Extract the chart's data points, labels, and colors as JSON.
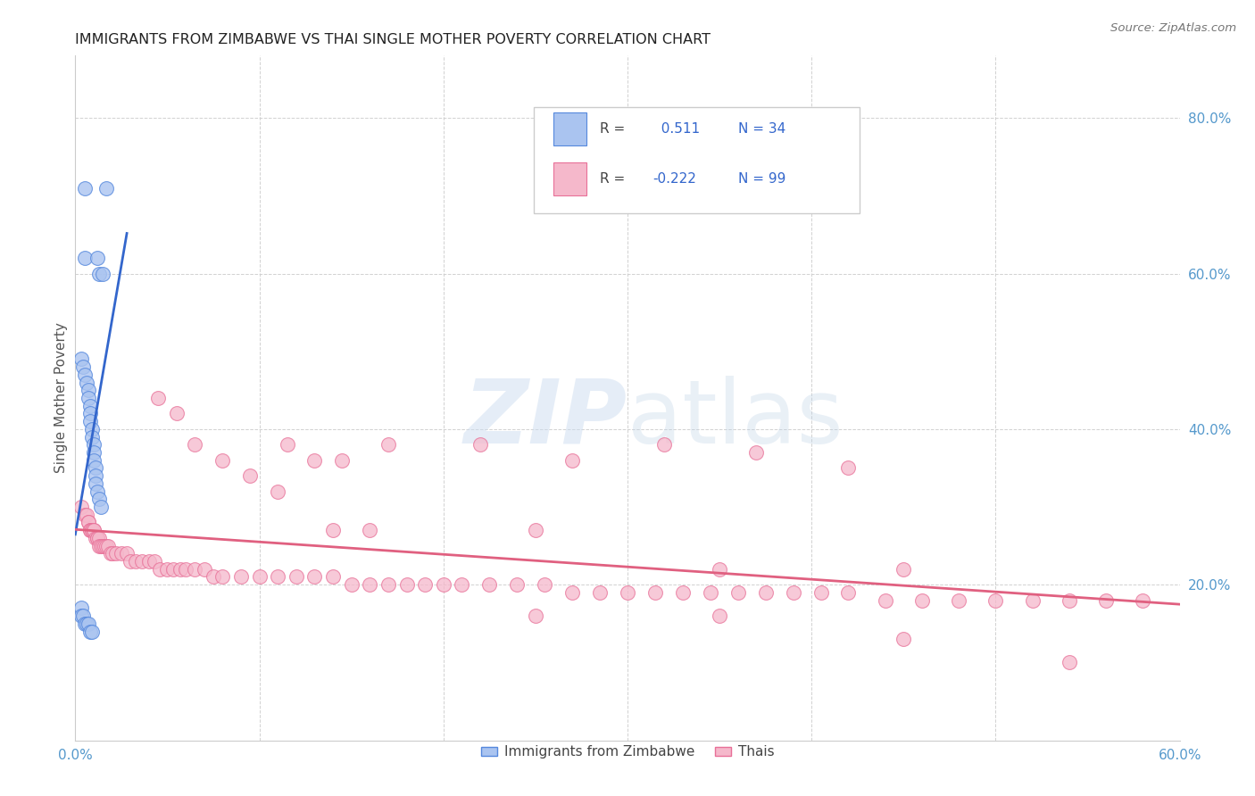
{
  "title": "IMMIGRANTS FROM ZIMBABWE VS THAI SINGLE MOTHER POVERTY CORRELATION CHART",
  "source": "Source: ZipAtlas.com",
  "ylabel": "Single Mother Poverty",
  "xmin": 0.0,
  "xmax": 0.6,
  "ymin": 0.0,
  "ymax": 0.88,
  "R1": 0.511,
  "N1": 34,
  "R2": -0.222,
  "N2": 99,
  "color_blue": "#aac4f0",
  "color_blue_edge": "#5588dd",
  "color_blue_line": "#3366cc",
  "color_pink": "#f5b8cb",
  "color_pink_edge": "#e87098",
  "color_pink_line": "#e06080",
  "background": "#ffffff",
  "blue_x": [
    0.005,
    0.017,
    0.005,
    0.012,
    0.013,
    0.015,
    0.003,
    0.004,
    0.005,
    0.006,
    0.007,
    0.007,
    0.008,
    0.008,
    0.008,
    0.009,
    0.009,
    0.01,
    0.01,
    0.01,
    0.011,
    0.011,
    0.011,
    0.012,
    0.013,
    0.014,
    0.003,
    0.003,
    0.004,
    0.005,
    0.006,
    0.007,
    0.008,
    0.009
  ],
  "blue_y": [
    0.71,
    0.71,
    0.62,
    0.62,
    0.6,
    0.6,
    0.49,
    0.48,
    0.47,
    0.46,
    0.45,
    0.44,
    0.43,
    0.42,
    0.41,
    0.4,
    0.39,
    0.38,
    0.37,
    0.36,
    0.35,
    0.34,
    0.33,
    0.32,
    0.31,
    0.3,
    0.17,
    0.16,
    0.16,
    0.15,
    0.15,
    0.15,
    0.14,
    0.14
  ],
  "pink_x": [
    0.003,
    0.005,
    0.006,
    0.007,
    0.007,
    0.008,
    0.008,
    0.009,
    0.009,
    0.01,
    0.01,
    0.011,
    0.012,
    0.012,
    0.013,
    0.013,
    0.014,
    0.015,
    0.016,
    0.017,
    0.018,
    0.019,
    0.02,
    0.022,
    0.025,
    0.028,
    0.03,
    0.033,
    0.036,
    0.04,
    0.043,
    0.046,
    0.05,
    0.053,
    0.057,
    0.06,
    0.065,
    0.07,
    0.075,
    0.08,
    0.09,
    0.1,
    0.11,
    0.12,
    0.13,
    0.14,
    0.15,
    0.16,
    0.17,
    0.18,
    0.19,
    0.2,
    0.21,
    0.225,
    0.24,
    0.255,
    0.27,
    0.285,
    0.3,
    0.315,
    0.33,
    0.345,
    0.36,
    0.375,
    0.39,
    0.405,
    0.42,
    0.44,
    0.46,
    0.48,
    0.5,
    0.52,
    0.54,
    0.56,
    0.58,
    0.115,
    0.13,
    0.145,
    0.045,
    0.055,
    0.065,
    0.08,
    0.095,
    0.11,
    0.17,
    0.22,
    0.27,
    0.32,
    0.37,
    0.42,
    0.14,
    0.16,
    0.25,
    0.35,
    0.45,
    0.25,
    0.35,
    0.45,
    0.54
  ],
  "pink_y": [
    0.3,
    0.29,
    0.29,
    0.28,
    0.28,
    0.27,
    0.27,
    0.27,
    0.27,
    0.27,
    0.27,
    0.26,
    0.26,
    0.26,
    0.26,
    0.25,
    0.25,
    0.25,
    0.25,
    0.25,
    0.25,
    0.24,
    0.24,
    0.24,
    0.24,
    0.24,
    0.23,
    0.23,
    0.23,
    0.23,
    0.23,
    0.22,
    0.22,
    0.22,
    0.22,
    0.22,
    0.22,
    0.22,
    0.21,
    0.21,
    0.21,
    0.21,
    0.21,
    0.21,
    0.21,
    0.21,
    0.2,
    0.2,
    0.2,
    0.2,
    0.2,
    0.2,
    0.2,
    0.2,
    0.2,
    0.2,
    0.19,
    0.19,
    0.19,
    0.19,
    0.19,
    0.19,
    0.19,
    0.19,
    0.19,
    0.19,
    0.19,
    0.18,
    0.18,
    0.18,
    0.18,
    0.18,
    0.18,
    0.18,
    0.18,
    0.38,
    0.36,
    0.36,
    0.44,
    0.42,
    0.38,
    0.36,
    0.34,
    0.32,
    0.38,
    0.38,
    0.36,
    0.38,
    0.37,
    0.35,
    0.27,
    0.27,
    0.27,
    0.22,
    0.22,
    0.16,
    0.16,
    0.13,
    0.1
  ],
  "legend1_label": "Immigrants from Zimbabwe",
  "legend2_label": "Thais"
}
